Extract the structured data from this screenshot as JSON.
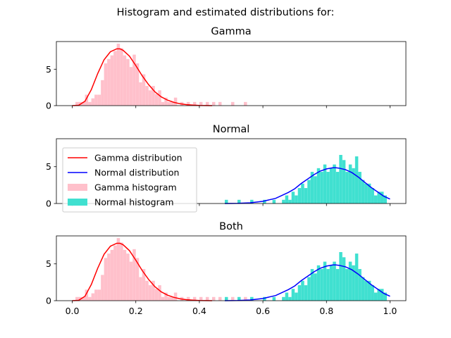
{
  "figure": {
    "suptitle": "Histogram and estimated distributions for:"
  },
  "colors": {
    "gamma_hist": "#ffc0cb",
    "normal_hist": "#40e0d0",
    "gamma_curve": "#ff0000",
    "normal_curve": "#0000ff"
  },
  "legend": {
    "placement": "upper-left of Normal panel",
    "entries": [
      {
        "label": "Gamma distribution",
        "kind": "line",
        "color": "#ff0000"
      },
      {
        "label": "Normal distribution",
        "kind": "line",
        "color": "#0000ff"
      },
      {
        "label": "Gamma histogram",
        "kind": "patch",
        "color": "#ffc0cb"
      },
      {
        "label": "Normal histogram",
        "kind": "patch",
        "color": "#40e0d0"
      }
    ]
  },
  "chart_data": [
    {
      "type": "bar",
      "title": "Gamma",
      "xlim": [
        -0.05,
        1.05
      ],
      "ylim": [
        0,
        8.8
      ],
      "yticks": [
        0,
        5
      ],
      "show_xticklabels": false,
      "xticks": [
        0.0,
        0.2,
        0.4,
        0.6,
        0.8,
        1.0
      ],
      "bin_width": 0.01,
      "series": [
        {
          "role": "gamma_hist",
          "bin_starts": [
            0.01,
            0.02,
            0.03,
            0.04,
            0.05,
            0.06,
            0.07,
            0.08,
            0.09,
            0.1,
            0.11,
            0.12,
            0.13,
            0.14,
            0.15,
            0.16,
            0.17,
            0.18,
            0.19,
            0.2,
            0.21,
            0.22,
            0.23,
            0.24,
            0.25,
            0.26,
            0.27,
            0.28,
            0.29,
            0.3,
            0.31,
            0.32,
            0.34,
            0.36,
            0.38,
            0.4,
            0.42,
            0.44,
            0.46,
            0.5,
            0.54
          ],
          "values": [
            0.5,
            0.5,
            0.5,
            1.5,
            0.5,
            1.0,
            1.5,
            1.5,
            3.5,
            5.8,
            6.4,
            6.9,
            7.5,
            8.5,
            7.9,
            6.9,
            6.4,
            5.3,
            7.0,
            5.8,
            3.2,
            4.3,
            2.7,
            2.1,
            2.7,
            1.6,
            2.1,
            0.5,
            1.1,
            0.5,
            0.5,
            1.1,
            0.5,
            0.5,
            0.5,
            0.5,
            0.5,
            0.5,
            0.5,
            0.5,
            0.5
          ]
        },
        {
          "role": "gamma_curve",
          "x": [
            0.0,
            0.02,
            0.04,
            0.06,
            0.08,
            0.1,
            0.12,
            0.14,
            0.15,
            0.16,
            0.18,
            0.2,
            0.22,
            0.24,
            0.26,
            0.28,
            0.3,
            0.32,
            0.34,
            0.36,
            0.38,
            0.4,
            0.44
          ],
          "values": [
            0,
            0.05,
            0.6,
            2.2,
            4.4,
            6.3,
            7.4,
            7.8,
            7.8,
            7.6,
            6.8,
            5.5,
            4.1,
            2.9,
            1.9,
            1.2,
            0.75,
            0.45,
            0.25,
            0.13,
            0.07,
            0.03,
            0.0
          ]
        }
      ]
    },
    {
      "type": "bar",
      "title": "Normal",
      "xlim": [
        -0.05,
        1.05
      ],
      "ylim": [
        0,
        8.8
      ],
      "yticks": [
        0,
        5
      ],
      "show_xticklabels": false,
      "xticks": [
        0.0,
        0.2,
        0.4,
        0.6,
        0.8,
        1.0
      ],
      "bin_width": 0.01,
      "series": [
        {
          "role": "normal_hist",
          "bin_starts": [
            0.48,
            0.52,
            0.56,
            0.6,
            0.63,
            0.66,
            0.67,
            0.68,
            0.69,
            0.7,
            0.71,
            0.72,
            0.73,
            0.74,
            0.75,
            0.76,
            0.77,
            0.78,
            0.79,
            0.8,
            0.81,
            0.82,
            0.83,
            0.84,
            0.85,
            0.86,
            0.87,
            0.88,
            0.89,
            0.9,
            0.91,
            0.92,
            0.93,
            0.94,
            0.95,
            0.96,
            0.97,
            0.98
          ],
          "values": [
            0.5,
            0.5,
            0.5,
            0.5,
            0.5,
            0.5,
            1.1,
            0.5,
            1.6,
            1.1,
            2.1,
            2.7,
            2.1,
            3.2,
            4.3,
            3.7,
            4.8,
            4.3,
            5.3,
            4.3,
            4.8,
            5.3,
            4.3,
            6.6,
            5.9,
            4.3,
            5.3,
            4.8,
            6.4,
            4.3,
            3.2,
            2.7,
            2.7,
            2.1,
            1.1,
            1.6,
            1.6,
            1.1
          ]
        },
        {
          "role": "normal_curve",
          "x": [
            0.48,
            0.52,
            0.56,
            0.6,
            0.64,
            0.68,
            0.7,
            0.72,
            0.74,
            0.76,
            0.78,
            0.8,
            0.82,
            0.83,
            0.84,
            0.86,
            0.88,
            0.9,
            0.92,
            0.94,
            0.96,
            0.98,
            1.0
          ],
          "values": [
            0.0,
            0.02,
            0.1,
            0.3,
            0.7,
            1.5,
            2.0,
            2.7,
            3.3,
            3.9,
            4.4,
            4.7,
            4.85,
            4.85,
            4.8,
            4.6,
            4.2,
            3.6,
            2.9,
            2.2,
            1.6,
            1.0,
            0.6
          ]
        }
      ]
    },
    {
      "type": "bar",
      "title": "Both",
      "xlim": [
        -0.05,
        1.05
      ],
      "ylim": [
        0,
        8.8
      ],
      "yticks": [
        0,
        5
      ],
      "show_xticklabels": true,
      "xticks": [
        0.0,
        0.2,
        0.4,
        0.6,
        0.8,
        1.0
      ],
      "xticklabels": [
        "0.0",
        "0.2",
        "0.4",
        "0.6",
        "0.8",
        "1.0"
      ],
      "bin_width": 0.01,
      "series": [
        {
          "role": "gamma_hist",
          "ref": 0
        },
        {
          "role": "normal_hist",
          "ref": 1
        },
        {
          "role": "gamma_curve",
          "ref": 0
        },
        {
          "role": "normal_curve",
          "ref": 1
        }
      ]
    }
  ]
}
